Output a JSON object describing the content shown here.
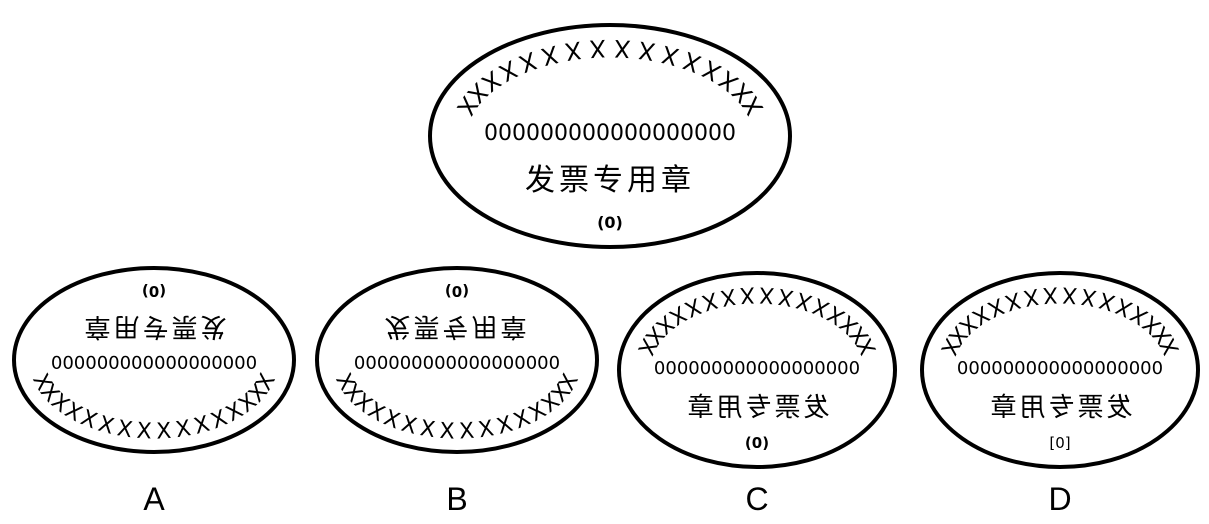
{
  "stamp": {
    "outer_text": "XXXXXXXXXXXXXXXX",
    "number_row": "000000000000000000",
    "title": "发票专用章",
    "code": "(0)",
    "code_bracket": "[0]"
  },
  "options": [
    {
      "label": "A"
    },
    {
      "label": "B"
    },
    {
      "label": "C"
    },
    {
      "label": "D"
    }
  ]
}
